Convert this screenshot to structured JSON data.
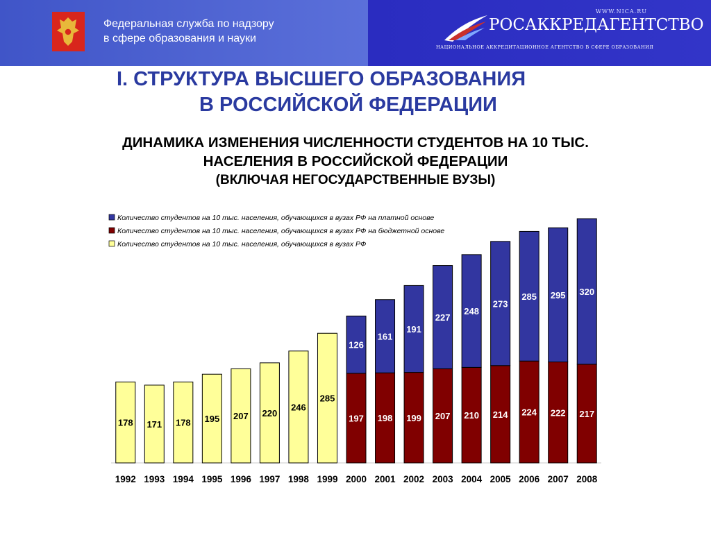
{
  "header": {
    "agency_line1": "Федеральная служба по надзору",
    "agency_line2": "в сфере образования и науки",
    "site": "WWW.NICA.RU",
    "brand": "РОСАККРЕДАГЕНТСТВО",
    "brand_sub": "НАЦИОНАЛЬНОЕ АККРЕДИТАЦИОННОЕ АГЕНТСТВО В СФЕРЕ ОБРАЗОВАНИЯ",
    "colors": {
      "left_bg": "#4e63d2",
      "right_bg": "#2d2fc4"
    }
  },
  "page": {
    "title_line1": "I. СТРУКТУРА ВЫСШЕГО ОБРАЗОВАНИЯ",
    "title_line2": "В РОССИЙСКОЙ ФЕДЕРАЦИИ",
    "subtitle_line1": "ДИНАМИКА ИЗМЕНЕНИЯ ЧИСЛЕННОСТИ СТУДЕНТОВ НА 10 ТЫС.",
    "subtitle_line2": "НАСЕЛЕНИЯ В РОССИЙСКОЙ ФЕДЕРАЦИИ",
    "subtitle_line3": "(ВКЛЮЧАЯ НЕГОСУДАРСТВЕННЫЕ ВУЗЫ)"
  },
  "chart_data": {
    "type": "bar",
    "stacked": true,
    "categories": [
      "1992",
      "1993",
      "1994",
      "1995",
      "1996",
      "1997",
      "1998",
      "1999",
      "2000",
      "2001",
      "2002",
      "2003",
      "2004",
      "2005",
      "2006",
      "2007",
      "2008"
    ],
    "series": [
      {
        "name": "Количество студентов на 10 тыс. населения, обучающихся в вузах РФ на платной основе",
        "color": "#3236a0",
        "values": [
          null,
          null,
          null,
          null,
          null,
          null,
          null,
          null,
          126,
          161,
          191,
          227,
          248,
          273,
          285,
          295,
          320
        ]
      },
      {
        "name": "Количество студентов на 10 тыс. населения, обучающихся в вузах РФ на бюджетной основе",
        "color": "#800000",
        "values": [
          null,
          null,
          null,
          null,
          null,
          null,
          null,
          null,
          197,
          198,
          199,
          207,
          210,
          214,
          224,
          222,
          217
        ]
      },
      {
        "name": "Количество студентов на 10 тыс. населения, обучающихся в вузах РФ",
        "color": "#ffff99",
        "values": [
          178,
          171,
          178,
          195,
          207,
          220,
          246,
          285,
          null,
          null,
          null,
          null,
          null,
          null,
          null,
          null,
          null
        ]
      }
    ],
    "ylim": [
      0,
      560
    ],
    "grid": false,
    "legend_position": "top-left"
  }
}
